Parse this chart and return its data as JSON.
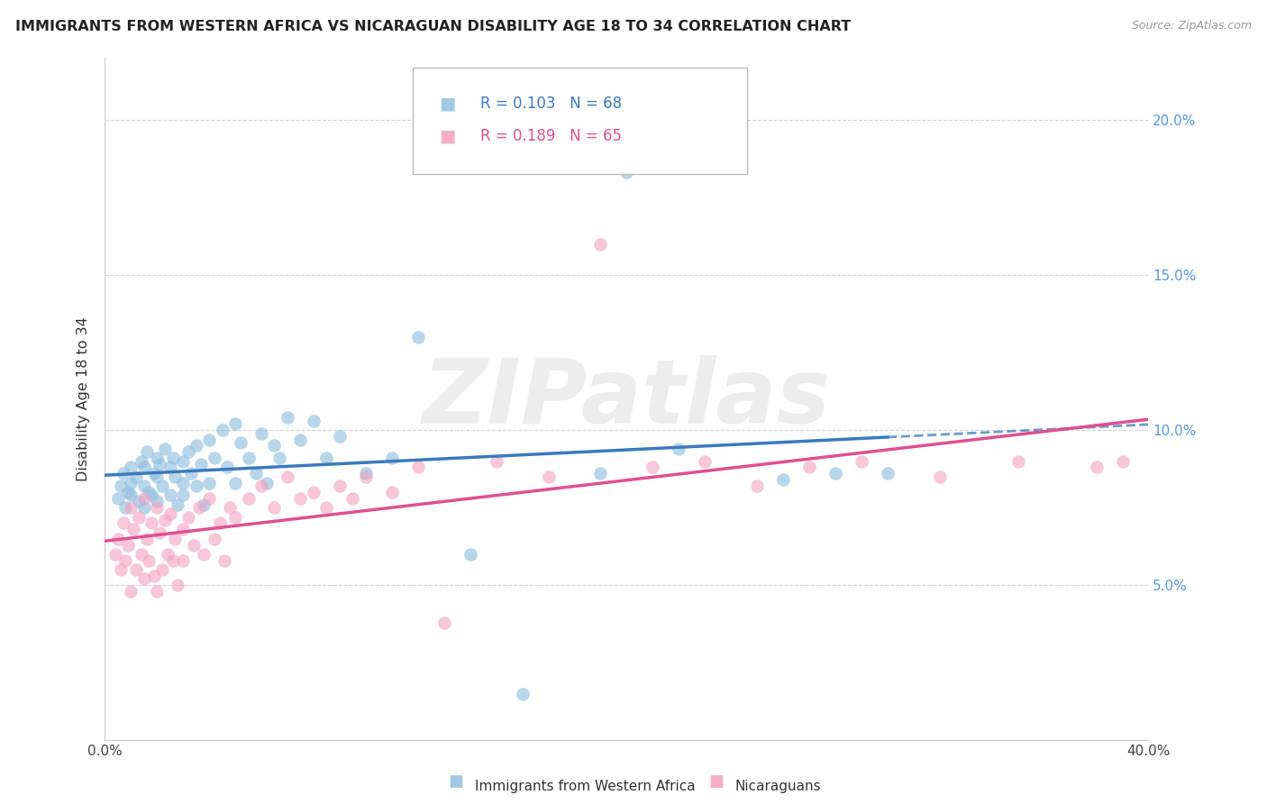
{
  "title": "IMMIGRANTS FROM WESTERN AFRICA VS NICARAGUAN DISABILITY AGE 18 TO 34 CORRELATION CHART",
  "source": "Source: ZipAtlas.com",
  "ylabel": "Disability Age 18 to 34",
  "xlim": [
    0.0,
    0.4
  ],
  "ylim": [
    0.0,
    0.22
  ],
  "xticks": [
    0.0,
    0.1,
    0.2,
    0.3,
    0.4
  ],
  "xticklabels": [
    "0.0%",
    "",
    "",
    "",
    "40.0%"
  ],
  "ytick_positions": [
    0.0,
    0.05,
    0.1,
    0.15,
    0.2
  ],
  "ytick_labels": [
    "",
    "5.0%",
    "10.0%",
    "15.0%",
    "20.0%"
  ],
  "blue_R": 0.103,
  "blue_N": 68,
  "pink_R": 0.189,
  "pink_N": 65,
  "blue_color": "#92c0e0",
  "pink_color": "#f4a0c0",
  "blue_line_color": "#3a7abf",
  "pink_line_color": "#e05090",
  "background_color": "#ffffff",
  "grid_color": "#cccccc",
  "watermark_text": "ZIPatlas",
  "legend_blue_label": "Immigrants from Western Africa",
  "legend_pink_label": "Nicaraguans",
  "blue_scatter_x": [
    0.005,
    0.006,
    0.007,
    0.008,
    0.009,
    0.01,
    0.01,
    0.01,
    0.012,
    0.013,
    0.014,
    0.015,
    0.015,
    0.015,
    0.016,
    0.017,
    0.018,
    0.019,
    0.02,
    0.02,
    0.02,
    0.021,
    0.022,
    0.023,
    0.025,
    0.025,
    0.026,
    0.027,
    0.028,
    0.03,
    0.03,
    0.03,
    0.032,
    0.033,
    0.035,
    0.035,
    0.037,
    0.038,
    0.04,
    0.04,
    0.042,
    0.045,
    0.047,
    0.05,
    0.05,
    0.052,
    0.055,
    0.058,
    0.06,
    0.062,
    0.065,
    0.067,
    0.07,
    0.075,
    0.08,
    0.085,
    0.09,
    0.1,
    0.11,
    0.12,
    0.14,
    0.16,
    0.19,
    0.2,
    0.22,
    0.26,
    0.28,
    0.3
  ],
  "blue_scatter_y": [
    0.078,
    0.082,
    0.086,
    0.075,
    0.08,
    0.088,
    0.079,
    0.083,
    0.085,
    0.077,
    0.09,
    0.088,
    0.082,
    0.075,
    0.093,
    0.08,
    0.079,
    0.086,
    0.091,
    0.077,
    0.085,
    0.089,
    0.082,
    0.094,
    0.088,
    0.079,
    0.091,
    0.085,
    0.076,
    0.09,
    0.083,
    0.079,
    0.093,
    0.086,
    0.095,
    0.082,
    0.089,
    0.076,
    0.097,
    0.083,
    0.091,
    0.1,
    0.088,
    0.102,
    0.083,
    0.096,
    0.091,
    0.086,
    0.099,
    0.083,
    0.095,
    0.091,
    0.104,
    0.097,
    0.103,
    0.091,
    0.098,
    0.086,
    0.091,
    0.13,
    0.06,
    0.015,
    0.086,
    0.183,
    0.094,
    0.084,
    0.086,
    0.086
  ],
  "pink_scatter_x": [
    0.004,
    0.005,
    0.006,
    0.007,
    0.008,
    0.009,
    0.01,
    0.01,
    0.011,
    0.012,
    0.013,
    0.014,
    0.015,
    0.015,
    0.016,
    0.017,
    0.018,
    0.019,
    0.02,
    0.02,
    0.021,
    0.022,
    0.023,
    0.024,
    0.025,
    0.026,
    0.027,
    0.028,
    0.03,
    0.03,
    0.032,
    0.034,
    0.036,
    0.038,
    0.04,
    0.042,
    0.044,
    0.046,
    0.048,
    0.05,
    0.055,
    0.06,
    0.065,
    0.07,
    0.075,
    0.08,
    0.085,
    0.09,
    0.095,
    0.1,
    0.11,
    0.12,
    0.13,
    0.15,
    0.17,
    0.19,
    0.21,
    0.23,
    0.25,
    0.27,
    0.29,
    0.32,
    0.35,
    0.38,
    0.39
  ],
  "pink_scatter_y": [
    0.06,
    0.065,
    0.055,
    0.07,
    0.058,
    0.063,
    0.075,
    0.048,
    0.068,
    0.055,
    0.072,
    0.06,
    0.078,
    0.052,
    0.065,
    0.058,
    0.07,
    0.053,
    0.075,
    0.048,
    0.067,
    0.055,
    0.071,
    0.06,
    0.073,
    0.058,
    0.065,
    0.05,
    0.068,
    0.058,
    0.072,
    0.063,
    0.075,
    0.06,
    0.078,
    0.065,
    0.07,
    0.058,
    0.075,
    0.072,
    0.078,
    0.082,
    0.075,
    0.085,
    0.078,
    0.08,
    0.075,
    0.082,
    0.078,
    0.085,
    0.08,
    0.088,
    0.038,
    0.09,
    0.085,
    0.16,
    0.088,
    0.09,
    0.082,
    0.088,
    0.09,
    0.085,
    0.09,
    0.088,
    0.09
  ]
}
